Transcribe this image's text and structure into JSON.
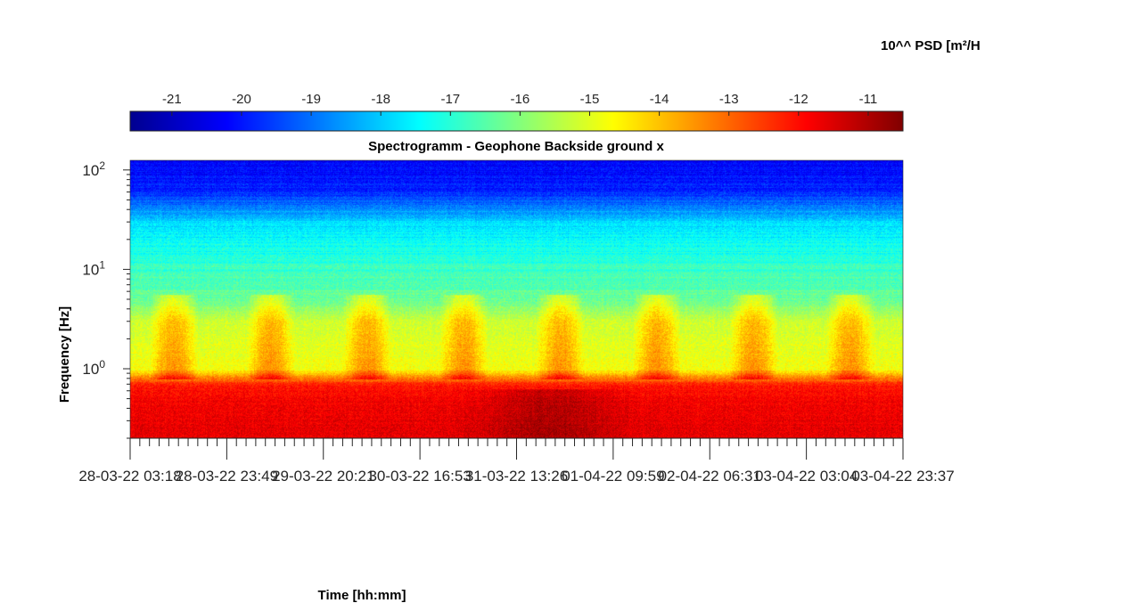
{
  "chart_data": {
    "type": "heatmap",
    "title": "Spectrogramm - Geophone Backside ground x",
    "xlabel": "Time [hh:mm]",
    "ylabel": "Frequency [Hz]",
    "colorbar": {
      "label": "10^^ PSD [m²/H",
      "ticks": [
        -21,
        -20,
        -19,
        -18,
        -17,
        -16,
        -15,
        -14,
        -13,
        -12,
        -11
      ],
      "range": [
        -21.6,
        -10.5
      ],
      "colormap": "jet"
    },
    "y_scale": "log",
    "ylim": [
      0.2,
      125
    ],
    "y_ticks": [
      {
        "value": 1,
        "base": "10",
        "exp": "0"
      },
      {
        "value": 10,
        "base": "10",
        "exp": "1"
      },
      {
        "value": 100,
        "base": "10",
        "exp": "2"
      }
    ],
    "x_ticks": [
      "28-03-22 03:18",
      "28-03-22 23:49",
      "29-03-22 20:21",
      "30-03-22 16:53",
      "31-03-22 13:26",
      "01-04-22 09:59",
      "02-04-22 06:31",
      "03-04-22 03:04",
      "03-04-22 23:37"
    ],
    "psd_profile_by_frequency": [
      {
        "f": 0.2,
        "psd": -11.6
      },
      {
        "f": 0.5,
        "psd": -11.8
      },
      {
        "f": 0.7,
        "psd": -12.2
      },
      {
        "f": 1,
        "psd": -14.8
      },
      {
        "f": 3,
        "psd": -15.2
      },
      {
        "f": 5,
        "psd": -16.3
      },
      {
        "f": 10,
        "psd": -16.8
      },
      {
        "f": 30,
        "psd": -17.8
      },
      {
        "f": 60,
        "psd": -19.8
      },
      {
        "f": 125,
        "psd": -20.3
      }
    ]
  }
}
